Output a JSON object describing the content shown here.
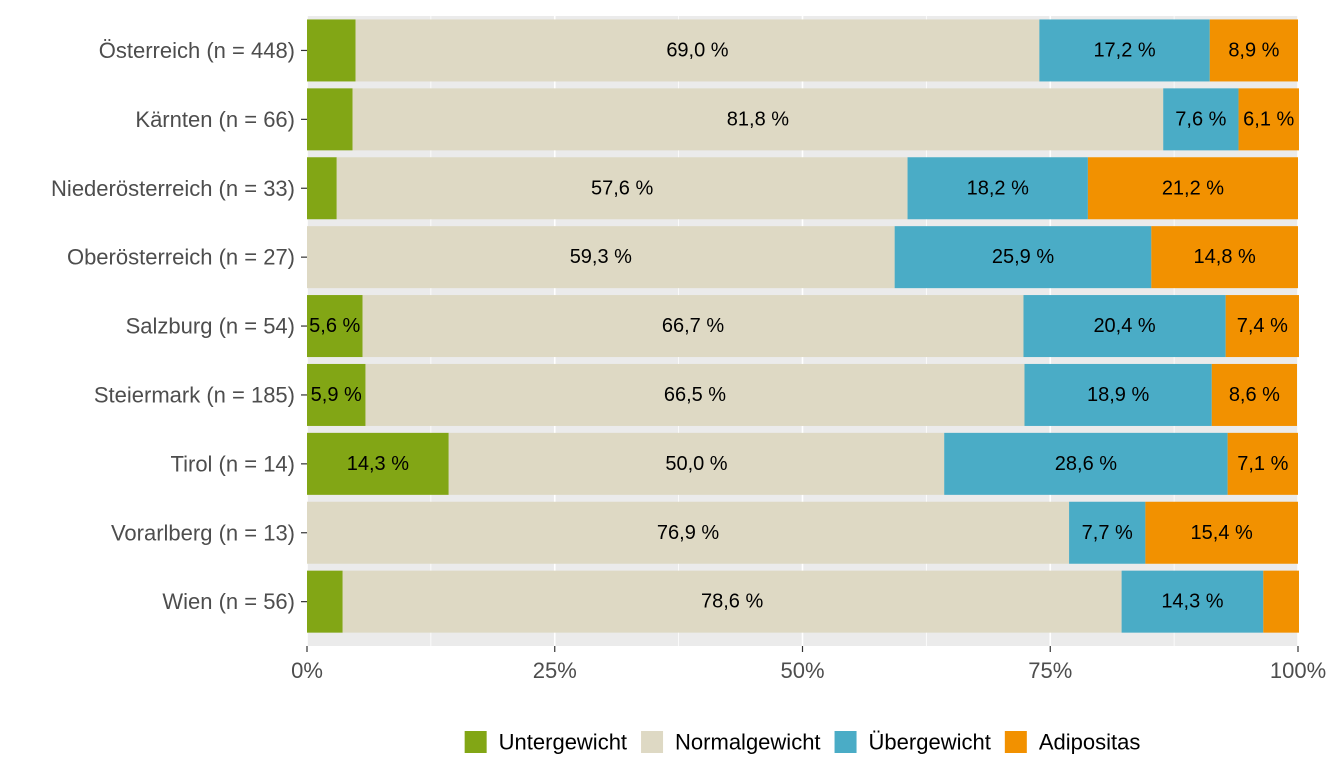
{
  "chart_data": {
    "type": "bar",
    "orientation": "horizontal",
    "stacked": true,
    "percent": true,
    "title": "",
    "xlabel": "",
    "ylabel": "",
    "xlim": [
      0,
      100
    ],
    "x_ticks": [
      "0%",
      "25%",
      "50%",
      "75%",
      "100%"
    ],
    "grid": true,
    "legend_position": "bottom",
    "categories": [
      "Österreich (n = 448)",
      "Kärnten (n = 66)",
      "Niederösterreich (n = 33)",
      "Oberösterreich (n = 27)",
      "Salzburg (n = 54)",
      "Steiermark (n = 185)",
      "Tirol (n = 14)",
      "Vorarlberg (n = 13)",
      "Wien (n = 56)"
    ],
    "series": [
      {
        "name": "Untergewicht",
        "color": "#82a615",
        "values": [
          4.9,
          4.6,
          3.0,
          0.0,
          5.6,
          5.9,
          14.3,
          0.0,
          3.6
        ],
        "labels": [
          "",
          "",
          "",
          "",
          "5,6 %",
          "5,9 %",
          "14,3 %",
          "",
          ""
        ]
      },
      {
        "name": "Normalgewicht",
        "color": "#ded9c4",
        "values": [
          69.0,
          81.8,
          57.6,
          59.3,
          66.7,
          66.5,
          50.0,
          76.9,
          78.6
        ],
        "labels": [
          "69,0 %",
          "81,8 %",
          "57,6 %",
          "59,3 %",
          "66,7 %",
          "66,5 %",
          "50,0 %",
          "76,9 %",
          "78,6 %"
        ]
      },
      {
        "name": "Übergewicht",
        "color": "#4aacc6",
        "values": [
          17.2,
          7.6,
          18.2,
          25.9,
          20.4,
          18.9,
          28.6,
          7.7,
          14.3
        ],
        "labels": [
          "17,2 %",
          "7,6 %",
          "18,2 %",
          "25,9 %",
          "20,4 %",
          "18,9 %",
          "28,6 %",
          "7,7 %",
          "14,3 %"
        ]
      },
      {
        "name": "Adipositas",
        "color": "#f29100",
        "values": [
          8.9,
          6.1,
          21.2,
          14.8,
          7.4,
          8.6,
          7.1,
          15.4,
          3.6
        ],
        "labels": [
          "8,9 %",
          "6,1 %",
          "21,2 %",
          "14,8 %",
          "7,4 %",
          "8,6 %",
          "7,1 %",
          "15,4 %",
          ""
        ]
      }
    ],
    "colors": {
      "panel_background": "#ebebeb",
      "grid": "#ffffff",
      "axis_text": "#4d4d4d"
    }
  }
}
